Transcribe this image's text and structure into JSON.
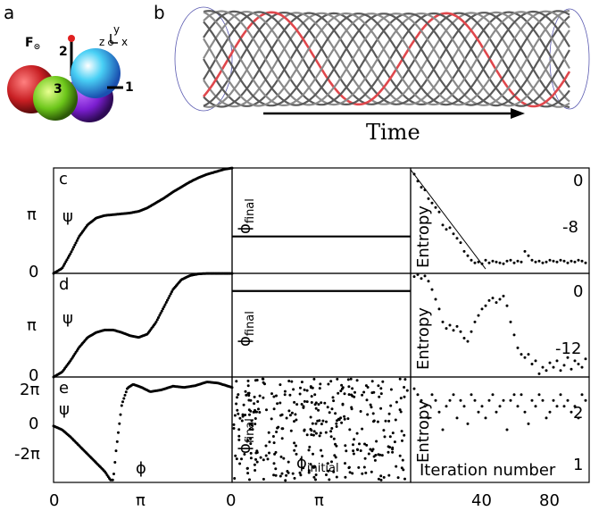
{
  "figure": {
    "panel_labels": [
      "a",
      "b",
      "c",
      "d",
      "e"
    ],
    "panel_a": {
      "force_label": "F",
      "force_sub": "⊙",
      "ball_labels": [
        "1",
        "2",
        "3"
      ],
      "axes": {
        "z": "z",
        "y": "y",
        "x": "x"
      },
      "ball_colors": [
        "#d8232a",
        "#7fd320",
        "#8a1fd8",
        "#2ab8e8"
      ]
    },
    "panel_b": {
      "time_label": "Time",
      "highlight_color": "#e0474c"
    },
    "left_column": {
      "psi_label": "ψ",
      "phi_label": "ϕ",
      "rows": [
        {
          "y_ticks": [
            "π",
            "0"
          ]
        },
        {
          "y_ticks": [
            "π",
            "0"
          ]
        },
        {
          "y_ticks": [
            "2π",
            "0",
            "-2π"
          ]
        }
      ],
      "x_ticks": [
        "0",
        "π"
      ]
    },
    "middle_column": {
      "phi_final_base": "ϕ",
      "phi_final_sub": "final",
      "phi_initial_base": "ϕ",
      "phi_initial_sub": "initial",
      "x_ticks": [
        "0",
        "π"
      ]
    },
    "right_column": {
      "entropy_label": "Entropy",
      "iteration_label": "Iteration number",
      "row_ticks": [
        [
          "0",
          "-8"
        ],
        [
          "0",
          "-12"
        ],
        [
          "2",
          "1"
        ]
      ],
      "x_ticks": [
        "40",
        "80"
      ]
    }
  },
  "chart_data": [
    {
      "type": "scatter",
      "panel": "c",
      "xlabel": "",
      "ylabel": "ψ",
      "xlim": [
        0,
        6.2832
      ],
      "ylim": [
        0,
        6.2832
      ],
      "x": [
        0,
        0.3,
        0.6,
        0.9,
        1.2,
        1.5,
        1.8,
        2.1,
        2.4,
        2.7,
        3.0,
        3.3,
        3.6,
        3.9,
        4.2,
        4.5,
        4.8,
        5.1,
        5.4,
        5.7,
        6.0,
        6.28
      ],
      "y": [
        0,
        0.3,
        1.2,
        2.2,
        2.9,
        3.3,
        3.45,
        3.5,
        3.55,
        3.6,
        3.7,
        3.9,
        4.2,
        4.5,
        4.85,
        5.15,
        5.45,
        5.7,
        5.9,
        6.05,
        6.2,
        6.28
      ]
    },
    {
      "type": "scatter",
      "panel": "d",
      "xlabel": "",
      "ylabel": "ψ",
      "xlim": [
        0,
        6.2832
      ],
      "ylim": [
        0,
        6.2832
      ],
      "x": [
        0,
        0.3,
        0.6,
        0.9,
        1.2,
        1.5,
        1.8,
        2.1,
        2.4,
        2.7,
        3.0,
        3.3,
        3.6,
        3.9,
        4.2,
        4.5,
        4.8,
        5.1,
        5.4,
        5.7,
        6.0,
        6.28
      ],
      "y": [
        0,
        0.3,
        1.0,
        1.8,
        2.4,
        2.7,
        2.85,
        2.85,
        2.7,
        2.5,
        2.4,
        2.6,
        3.3,
        4.3,
        5.3,
        5.9,
        6.15,
        6.25,
        6.28,
        6.28,
        6.28,
        6.28
      ]
    },
    {
      "type": "scatter",
      "panel": "e",
      "xlabel": "ϕ",
      "ylabel": "ψ",
      "xlim": [
        0,
        6.2832
      ],
      "ylim": [
        -9.2,
        8.0
      ],
      "x": [
        0,
        0.3,
        0.6,
        0.9,
        1.2,
        1.5,
        1.8,
        2.0,
        2.1,
        2.2,
        2.4,
        2.6,
        2.8,
        3.1,
        3.4,
        3.8,
        4.2,
        4.6,
        5.0,
        5.4,
        5.8,
        6.28
      ],
      "y": [
        0,
        -0.6,
        -1.8,
        -3.2,
        -4.6,
        -6.0,
        -7.4,
        -8.8,
        -8.8,
        -4.0,
        3.5,
        6.2,
        6.8,
        6.3,
        5.6,
        5.9,
        6.5,
        6.3,
        6.6,
        7.2,
        7.0,
        6.3
      ]
    },
    {
      "type": "line",
      "panel": "c-middle",
      "ylabel": "ϕ_final",
      "xlim": [
        0,
        6.2832
      ],
      "y_constant_fraction": 0.65
    },
    {
      "type": "line",
      "panel": "d-middle",
      "ylabel": "ϕ_final",
      "xlim": [
        0,
        6.2832
      ],
      "y_constant_fraction": 0.17
    },
    {
      "type": "scatter",
      "panel": "e-middle",
      "xlabel": "ϕ_initial",
      "ylabel": "ϕ_final",
      "xlim": [
        0,
        6.2832
      ],
      "ylim": [
        0,
        6.2832
      ],
      "note_random": true
    },
    {
      "type": "scatter",
      "panel": "c-right",
      "ylabel": "Entropy",
      "xlim": [
        0,
        100
      ],
      "ylim": [
        -11,
        1
      ],
      "x": [
        2,
        4,
        6,
        8,
        10,
        12,
        14,
        16,
        18,
        20,
        22,
        24,
        26,
        28,
        30,
        32,
        34,
        36,
        38,
        40,
        42,
        44,
        46,
        48,
        50,
        52,
        54,
        56,
        58,
        60,
        62,
        64,
        66,
        68,
        70,
        72,
        74,
        76,
        78,
        80,
        82,
        84,
        86,
        88,
        90,
        92,
        94,
        96,
        98
      ],
      "y": [
        0.3,
        -0.5,
        -1.2,
        -1.5,
        -2.5,
        -3.0,
        -3.5,
        -4.0,
        -5.5,
        -6.0,
        -5.8,
        -6.5,
        -7.0,
        -7.5,
        -8.5,
        -9.0,
        -9.5,
        -9.8,
        -9.7,
        -9.9,
        -9.5,
        -9.8,
        -9.6,
        -9.7,
        -9.8,
        -9.9,
        -9.6,
        -9.5,
        -9.8,
        -9.6,
        -9.7,
        -8.5,
        -9.0,
        -9.5,
        -9.7,
        -9.6,
        -9.8,
        -9.7,
        -9.5,
        -9.6,
        -9.7,
        -9.5,
        -9.6,
        -9.8,
        -9.6,
        -9.7,
        -9.5,
        -9.6,
        -9.8
      ],
      "fit_line": {
        "x": [
          0,
          42
        ],
        "y": [
          0.8,
          -10.5
        ]
      }
    },
    {
      "type": "scatter",
      "panel": "d-right",
      "ylabel": "Entropy",
      "xlim": [
        0,
        100
      ],
      "ylim": [
        -15,
        1
      ],
      "x": [
        2,
        4,
        6,
        8,
        10,
        12,
        14,
        16,
        18,
        20,
        22,
        24,
        26,
        28,
        30,
        32,
        34,
        36,
        38,
        40,
        42,
        44,
        46,
        48,
        50,
        52,
        54,
        56,
        58,
        60,
        62,
        64,
        66,
        68,
        70,
        72,
        74,
        76,
        78,
        80,
        82,
        84,
        86,
        88,
        90,
        92,
        94,
        96,
        98
      ],
      "y": [
        0.5,
        0.8,
        0.2,
        0.6,
        -0.2,
        -1.5,
        -3.0,
        -4.5,
        -6.5,
        -7.5,
        -7.0,
        -7.8,
        -7.2,
        -8.0,
        -9.0,
        -9.5,
        -8.0,
        -6.5,
        -5.5,
        -4.5,
        -4.0,
        -3.2,
        -2.8,
        -3.5,
        -3.0,
        -2.5,
        -4.0,
        -6.5,
        -8.5,
        -10.5,
        -11.5,
        -12.0,
        -11.5,
        -13.0,
        -12.5,
        -14.5,
        -13.5,
        -14.0,
        -12.8,
        -13.5,
        -12.5,
        -14.0,
        -13.2,
        -12.0,
        -13.8,
        -12.5,
        -13.0,
        -13.5,
        -12.2
      ]
    },
    {
      "type": "scatter",
      "panel": "e-right",
      "ylabel": "Entropy",
      "xlabel": "Iteration number",
      "xlim": [
        0,
        100
      ],
      "ylim": [
        0.8,
        2.6
      ],
      "x": [
        2,
        4,
        6,
        8,
        10,
        12,
        14,
        16,
        18,
        20,
        22,
        24,
        26,
        28,
        30,
        32,
        34,
        36,
        38,
        40,
        42,
        44,
        46,
        48,
        50,
        52,
        54,
        56,
        58,
        60,
        62,
        64,
        66,
        68,
        70,
        72,
        74,
        76,
        78,
        80,
        82,
        84,
        86,
        88,
        90,
        92,
        94,
        96,
        98
      ],
      "y": [
        2.4,
        2.3,
        2.2,
        2.1,
        1.9,
        2.3,
        2.2,
        2.0,
        1.7,
        2.1,
        2.2,
        2.3,
        1.9,
        2.2,
        2.1,
        1.8,
        2.3,
        2.2,
        2.0,
        2.1,
        1.9,
        2.2,
        2.3,
        2.0,
        2.1,
        2.2,
        1.7,
        2.2,
        2.3,
        2.1,
        2.3,
        2.0,
        1.8,
        2.2,
        2.1,
        2.3,
        2.2,
        1.9,
        2.0,
        2.2,
        2.1,
        2.3,
        2.1,
        2.2,
        2.0,
        2.1,
        1.9,
        2.3,
        2.2
      ]
    }
  ]
}
